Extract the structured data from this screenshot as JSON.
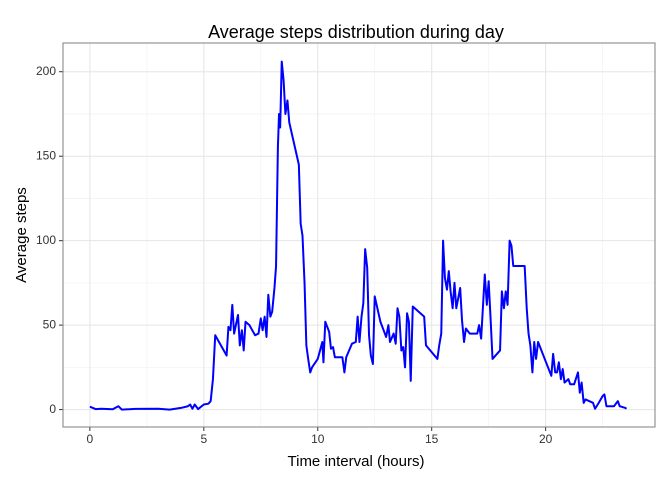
{
  "chart_data": {
    "type": "line",
    "title": "Average steps distribution during day",
    "x_label": "Time interval (hours)",
    "y_label": "Average steps",
    "xlim": [
      -1.18,
      24.8
    ],
    "ylim": [
      -10.3,
      217
    ],
    "xticks": [
      0,
      5,
      10,
      15,
      20
    ],
    "yticks": [
      0,
      50,
      100,
      150,
      200
    ],
    "grid": true,
    "series": [
      {
        "name": "Average steps",
        "color": "#0000ff",
        "x": [
          0,
          0.25,
          0.5,
          1,
          1.25,
          1.4,
          2,
          3,
          3.5,
          4,
          4.3,
          4.4,
          4.5,
          4.6,
          4.75,
          5,
          5.2,
          5.3,
          5.4,
          5.5,
          5.75,
          6,
          6.08,
          6.17,
          6.25,
          6.33,
          6.5,
          6.58,
          6.67,
          6.75,
          6.83,
          7,
          7.25,
          7.4,
          7.5,
          7.58,
          7.67,
          7.75,
          7.83,
          7.92,
          8,
          8.1,
          8.17,
          8.25,
          8.3,
          8.35,
          8.42,
          8.5,
          8.58,
          8.67,
          8.75,
          9.17,
          9.25,
          9.33,
          9.42,
          9.5,
          9.58,
          9.67,
          9.75,
          10,
          10.1,
          10.2,
          10.25,
          10.33,
          10.5,
          10.58,
          10.67,
          10.75,
          11.08,
          11.17,
          11.25,
          11.5,
          11.67,
          11.75,
          11.83,
          11.92,
          12,
          12.08,
          12.17,
          12.25,
          12.33,
          12.42,
          12.5,
          12.75,
          13,
          13.1,
          13.17,
          13.33,
          13.42,
          13.5,
          13.58,
          13.67,
          13.75,
          13.83,
          13.92,
          14,
          14.08,
          14.17,
          14.67,
          14.75,
          15.25,
          15.33,
          15.42,
          15.5,
          15.58,
          15.67,
          15.75,
          15.83,
          15.92,
          16,
          16.08,
          16.25,
          16.33,
          16.42,
          16.5,
          16.67,
          17,
          17.08,
          17.17,
          17.33,
          17.42,
          17.5,
          17.58,
          17.67,
          18,
          18.08,
          18.17,
          18.25,
          18.33,
          18.42,
          18.5,
          18.58,
          19.08,
          19.17,
          19.25,
          19.33,
          19.42,
          19.5,
          19.58,
          19.67,
          20.25,
          20.33,
          20.42,
          20.5,
          20.58,
          20.67,
          20.75,
          20.83,
          21,
          21.08,
          21.25,
          21.42,
          21.5,
          21.58,
          21.67,
          21.75,
          22.08,
          22.17,
          22.33,
          22.5,
          22.58,
          22.67,
          23,
          23.17,
          23.25,
          23.5,
          23.55
        ],
        "values": [
          1.7,
          0.3,
          0.5,
          0.2,
          2,
          0,
          0.4,
          0.5,
          0,
          1,
          2,
          3,
          0.5,
          3,
          0.3,
          3,
          3.5,
          5,
          18,
          44,
          38,
          32,
          49,
          47,
          62,
          45,
          56,
          38,
          47,
          35,
          52,
          50,
          44,
          45,
          54,
          47,
          55,
          43,
          68,
          55,
          58,
          72,
          85,
          155,
          175,
          167,
          206,
          195,
          175,
          183,
          170,
          145,
          110,
          103,
          75,
          38,
          30,
          22,
          25,
          30,
          35,
          40,
          28,
          52,
          46,
          36,
          37,
          31,
          31,
          22,
          31,
          39,
          40,
          55,
          40,
          55,
          63,
          95,
          84,
          44,
          32,
          27,
          67,
          52,
          43,
          50,
          40,
          45,
          39,
          60,
          55,
          35,
          37,
          25,
          57,
          52,
          17,
          61,
          55,
          38,
          30,
          38,
          45,
          100,
          78,
          71,
          82,
          70,
          60,
          75,
          60,
          72,
          53,
          40,
          48,
          45,
          45,
          50,
          42,
          80,
          62,
          76,
          55,
          30,
          35,
          70,
          60,
          70,
          62,
          100,
          97,
          85,
          85,
          60,
          45,
          38,
          22,
          40,
          30,
          40,
          20,
          33,
          22,
          22,
          28,
          18,
          24,
          16,
          18,
          15,
          15,
          22,
          10,
          16,
          4,
          6,
          4,
          0.5,
          4,
          8,
          9,
          2,
          2,
          5,
          2,
          1,
          0.5
        ]
      }
    ]
  }
}
